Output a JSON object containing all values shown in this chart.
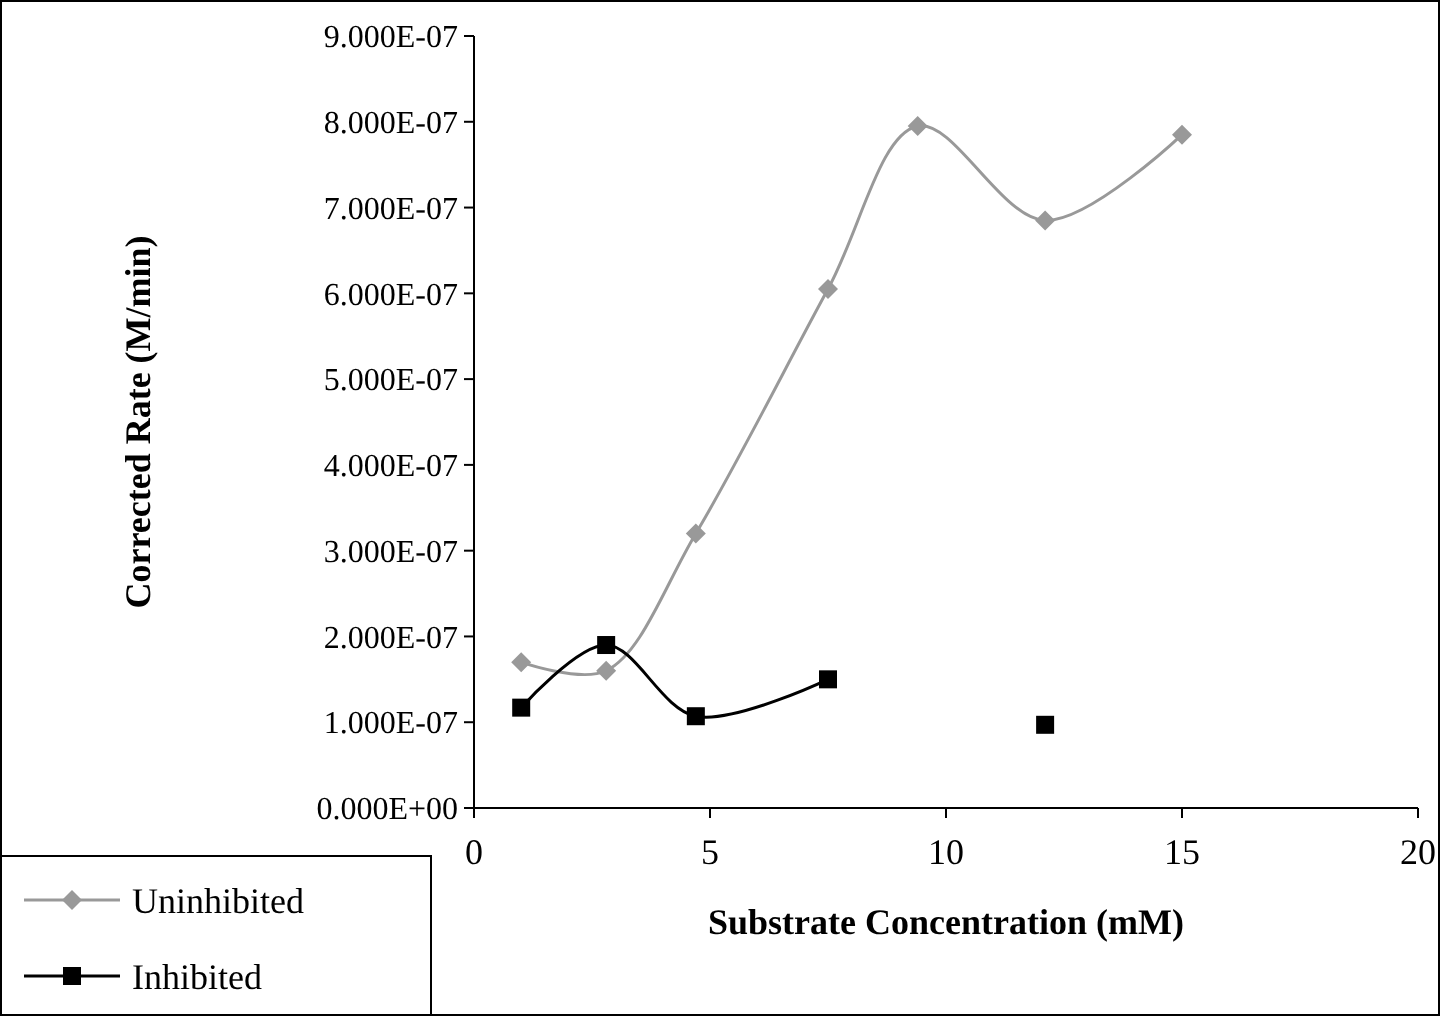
{
  "chart_data": {
    "type": "line",
    "xlabel": "Substrate Concentration (mM)",
    "ylabel": "Corrected Rate (M/min)",
    "xlim": [
      0,
      20
    ],
    "xticks": [
      0,
      5,
      10,
      15,
      20
    ],
    "ylim": [
      0,
      9e-07
    ],
    "yticks": [
      {
        "value": 0,
        "label": "0.000E+00"
      },
      {
        "value": 1e-07,
        "label": "1.000E-07"
      },
      {
        "value": 2e-07,
        "label": "2.000E-07"
      },
      {
        "value": 3e-07,
        "label": "3.000E-07"
      },
      {
        "value": 4e-07,
        "label": "4.000E-07"
      },
      {
        "value": 5e-07,
        "label": "5.000E-07"
      },
      {
        "value": 6e-07,
        "label": "6.000E-07"
      },
      {
        "value": 7e-07,
        "label": "7.000E-07"
      },
      {
        "value": 8e-07,
        "label": "8.000E-07"
      },
      {
        "value": 9e-07,
        "label": "9.000E-07"
      }
    ],
    "grid": false,
    "legend": "bottom left",
    "series": [
      {
        "name": "Uninhibited",
        "color": "#999999",
        "marker": "diamond",
        "x": [
          1,
          2.8,
          4.7,
          7.5,
          9.4,
          12.1,
          15
        ],
        "values": [
          1.7e-07,
          1.6e-07,
          3.2e-07,
          6.05e-07,
          7.95e-07,
          6.85e-07,
          7.85e-07
        ]
      },
      {
        "name": "Inhibited",
        "color": "#000000",
        "marker": "square",
        "x": [
          1,
          2.8,
          4.7,
          7.5,
          9.4,
          12.1
        ],
        "values": [
          1.17e-07,
          1.9e-07,
          1.07e-07,
          1.5e-07,
          null,
          9.7e-08
        ]
      }
    ]
  }
}
